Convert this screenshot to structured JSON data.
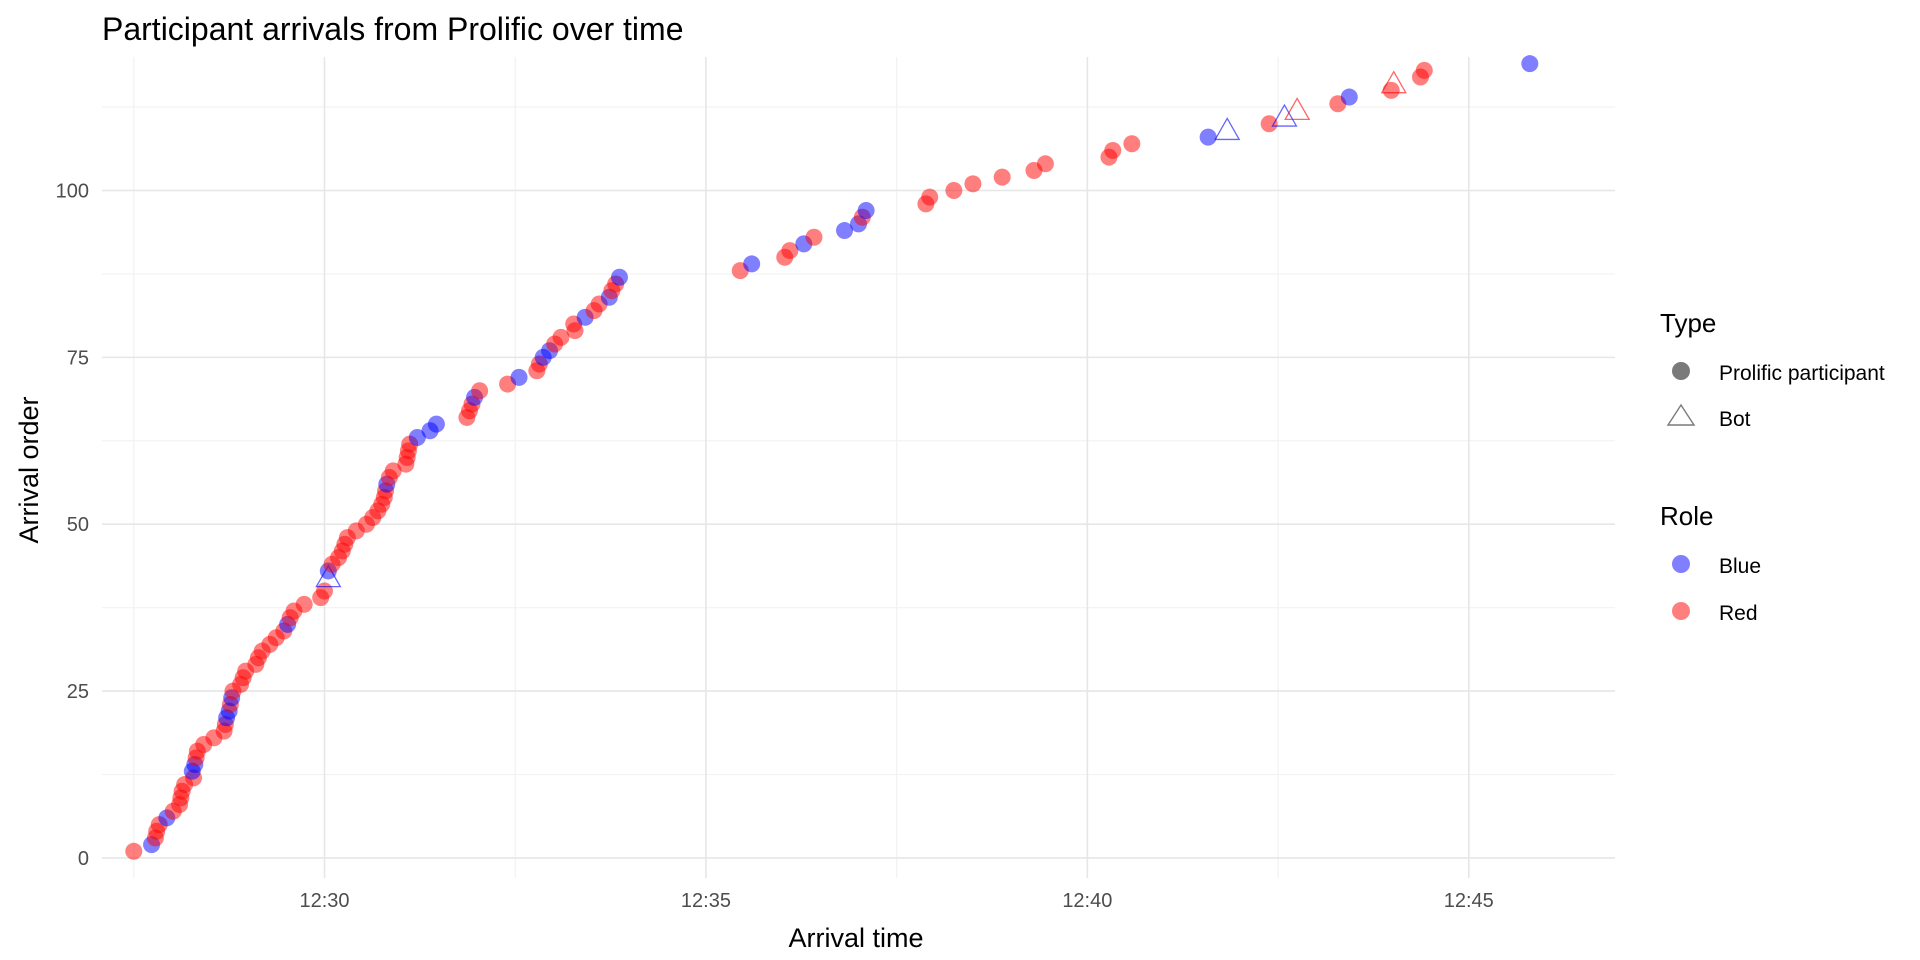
{
  "chart_data": {
    "type": "scatter",
    "title": "Participant arrivals from Prolific over time",
    "xlabel": "Arrival time",
    "ylabel": "Arrival order",
    "x_unit": "minutes",
    "xlim": [
      "12:27:05",
      "12:46:55"
    ],
    "ylim": [
      -3,
      120
    ],
    "x_ticks": [
      {
        "value": "12:30:00",
        "label": "12:30"
      },
      {
        "value": "12:35:00",
        "label": "12:35"
      },
      {
        "value": "12:40:00",
        "label": "12:40"
      },
      {
        "value": "12:45:00",
        "label": "12:45"
      }
    ],
    "y_ticks": [
      {
        "value": 0,
        "label": "0"
      },
      {
        "value": 25,
        "label": "25"
      },
      {
        "value": 50,
        "label": "50"
      },
      {
        "value": 75,
        "label": "75"
      },
      {
        "value": 100,
        "label": "100"
      }
    ],
    "grid": true,
    "legend_position": "right",
    "legends": {
      "type": {
        "title": "Type",
        "items": [
          {
            "label": "Prolific participant",
            "shape": "circle"
          },
          {
            "label": "Bot",
            "shape": "triangle"
          }
        ]
      },
      "role": {
        "title": "Role",
        "items": [
          {
            "label": "Blue",
            "color": "#0000ff"
          },
          {
            "label": "Red",
            "color": "#ff0000"
          }
        ]
      }
    },
    "colors": {
      "Blue": "#0000ff",
      "Red": "#ff0000"
    },
    "points": [
      {
        "x": "12:27:30",
        "y": 1,
        "role": "Red",
        "type": "Prolific participant"
      },
      {
        "x": "12:27:44",
        "y": 2,
        "role": "Blue",
        "type": "Prolific participant"
      },
      {
        "x": "12:27:47",
        "y": 3,
        "role": "Red",
        "type": "Prolific participant"
      },
      {
        "x": "12:27:48",
        "y": 4,
        "role": "Red",
        "type": "Prolific participant"
      },
      {
        "x": "12:27:50",
        "y": 5,
        "role": "Red",
        "type": "Prolific participant"
      },
      {
        "x": "12:27:56",
        "y": 6,
        "role": "Blue",
        "type": "Prolific participant"
      },
      {
        "x": "12:28:01",
        "y": 7,
        "role": "Red",
        "type": "Prolific participant"
      },
      {
        "x": "12:28:06",
        "y": 8,
        "role": "Red",
        "type": "Prolific participant"
      },
      {
        "x": "12:28:07",
        "y": 9,
        "role": "Red",
        "type": "Prolific participant"
      },
      {
        "x": "12:28:08",
        "y": 10,
        "role": "Red",
        "type": "Prolific participant"
      },
      {
        "x": "12:28:10",
        "y": 11,
        "role": "Red",
        "type": "Prolific participant"
      },
      {
        "x": "12:28:17",
        "y": 12,
        "role": "Red",
        "type": "Prolific participant"
      },
      {
        "x": "12:28:16",
        "y": 13,
        "role": "Blue",
        "type": "Prolific participant"
      },
      {
        "x": "12:28:18",
        "y": 14,
        "role": "Blue",
        "type": "Prolific participant"
      },
      {
        "x": "12:28:19",
        "y": 15,
        "role": "Red",
        "type": "Prolific participant"
      },
      {
        "x": "12:28:20",
        "y": 16,
        "role": "Red",
        "type": "Prolific participant"
      },
      {
        "x": "12:28:25",
        "y": 17,
        "role": "Red",
        "type": "Prolific participant"
      },
      {
        "x": "12:28:33",
        "y": 18,
        "role": "Red",
        "type": "Prolific participant"
      },
      {
        "x": "12:28:41",
        "y": 19,
        "role": "Red",
        "type": "Prolific participant"
      },
      {
        "x": "12:28:42",
        "y": 20,
        "role": "Red",
        "type": "Prolific participant"
      },
      {
        "x": "12:28:43",
        "y": 21,
        "role": "Blue",
        "type": "Prolific participant"
      },
      {
        "x": "12:28:45",
        "y": 22,
        "role": "Blue",
        "type": "Prolific participant"
      },
      {
        "x": "12:28:46",
        "y": 23,
        "role": "Red",
        "type": "Prolific participant"
      },
      {
        "x": "12:28:47",
        "y": 24,
        "role": "Blue",
        "type": "Prolific participant"
      },
      {
        "x": "12:28:48",
        "y": 25,
        "role": "Red",
        "type": "Prolific participant"
      },
      {
        "x": "12:28:54",
        "y": 26,
        "role": "Red",
        "type": "Prolific participant"
      },
      {
        "x": "12:28:56",
        "y": 27,
        "role": "Red",
        "type": "Prolific participant"
      },
      {
        "x": "12:28:58",
        "y": 28,
        "role": "Red",
        "type": "Prolific participant"
      },
      {
        "x": "12:29:06",
        "y": 29,
        "role": "Red",
        "type": "Prolific participant"
      },
      {
        "x": "12:29:08",
        "y": 30,
        "role": "Red",
        "type": "Prolific participant"
      },
      {
        "x": "12:29:11",
        "y": 31,
        "role": "Red",
        "type": "Prolific participant"
      },
      {
        "x": "12:29:17",
        "y": 32,
        "role": "Red",
        "type": "Prolific participant"
      },
      {
        "x": "12:29:22",
        "y": 33,
        "role": "Red",
        "type": "Prolific participant"
      },
      {
        "x": "12:29:28",
        "y": 34,
        "role": "Red",
        "type": "Prolific participant"
      },
      {
        "x": "12:29:31",
        "y": 35,
        "role": "Blue",
        "type": "Prolific participant"
      },
      {
        "x": "12:29:33",
        "y": 36,
        "role": "Red",
        "type": "Prolific participant"
      },
      {
        "x": "12:29:36",
        "y": 37,
        "role": "Red",
        "type": "Prolific participant"
      },
      {
        "x": "12:29:44",
        "y": 38,
        "role": "Red",
        "type": "Prolific participant"
      },
      {
        "x": "12:29:57",
        "y": 39,
        "role": "Red",
        "type": "Prolific participant"
      },
      {
        "x": "12:30:00",
        "y": 40,
        "role": "Red",
        "type": "Prolific participant"
      },
      {
        "x": "12:30:03",
        "y": 42,
        "role": "Blue",
        "type": "Bot"
      },
      {
        "x": "12:30:03",
        "y": 43,
        "role": "Blue",
        "type": "Prolific participant"
      },
      {
        "x": "12:30:06",
        "y": 44,
        "role": "Red",
        "type": "Prolific participant"
      },
      {
        "x": "12:30:11",
        "y": 45,
        "role": "Red",
        "type": "Prolific participant"
      },
      {
        "x": "12:30:14",
        "y": 46,
        "role": "Red",
        "type": "Prolific participant"
      },
      {
        "x": "12:30:16",
        "y": 47,
        "role": "Red",
        "type": "Prolific participant"
      },
      {
        "x": "12:30:18",
        "y": 48,
        "role": "Red",
        "type": "Prolific participant"
      },
      {
        "x": "12:30:25",
        "y": 49,
        "role": "Red",
        "type": "Prolific participant"
      },
      {
        "x": "12:30:33",
        "y": 50,
        "role": "Red",
        "type": "Prolific participant"
      },
      {
        "x": "12:30:38",
        "y": 51,
        "role": "Red",
        "type": "Prolific participant"
      },
      {
        "x": "12:30:42",
        "y": 52,
        "role": "Red",
        "type": "Prolific participant"
      },
      {
        "x": "12:30:45",
        "y": 53,
        "role": "Red",
        "type": "Prolific participant"
      },
      {
        "x": "12:30:47",
        "y": 54,
        "role": "Red",
        "type": "Prolific participant"
      },
      {
        "x": "12:30:48",
        "y": 55,
        "role": "Red",
        "type": "Prolific participant"
      },
      {
        "x": "12:30:49",
        "y": 56,
        "role": "Blue",
        "type": "Prolific participant"
      },
      {
        "x": "12:30:51",
        "y": 57,
        "role": "Red",
        "type": "Prolific participant"
      },
      {
        "x": "12:30:54",
        "y": 58,
        "role": "Red",
        "type": "Prolific participant"
      },
      {
        "x": "12:31:04",
        "y": 59,
        "role": "Red",
        "type": "Prolific participant"
      },
      {
        "x": "12:31:05",
        "y": 60,
        "role": "Red",
        "type": "Prolific participant"
      },
      {
        "x": "12:31:06",
        "y": 61,
        "role": "Red",
        "type": "Prolific participant"
      },
      {
        "x": "12:31:07",
        "y": 62,
        "role": "Red",
        "type": "Prolific participant"
      },
      {
        "x": "12:31:13",
        "y": 63,
        "role": "Blue",
        "type": "Prolific participant"
      },
      {
        "x": "12:31:23",
        "y": 64,
        "role": "Blue",
        "type": "Prolific participant"
      },
      {
        "x": "12:31:28",
        "y": 65,
        "role": "Blue",
        "type": "Prolific participant"
      },
      {
        "x": "12:31:52",
        "y": 66,
        "role": "Red",
        "type": "Prolific participant"
      },
      {
        "x": "12:31:54",
        "y": 67,
        "role": "Red",
        "type": "Prolific participant"
      },
      {
        "x": "12:31:56",
        "y": 68,
        "role": "Red",
        "type": "Prolific participant"
      },
      {
        "x": "12:31:58",
        "y": 69,
        "role": "Blue",
        "type": "Prolific participant"
      },
      {
        "x": "12:32:02",
        "y": 70,
        "role": "Red",
        "type": "Prolific participant"
      },
      {
        "x": "12:32:24",
        "y": 71,
        "role": "Red",
        "type": "Prolific participant"
      },
      {
        "x": "12:32:33",
        "y": 72,
        "role": "Blue",
        "type": "Prolific participant"
      },
      {
        "x": "12:32:47",
        "y": 73,
        "role": "Red",
        "type": "Prolific participant"
      },
      {
        "x": "12:32:49",
        "y": 74,
        "role": "Red",
        "type": "Prolific participant"
      },
      {
        "x": "12:32:52",
        "y": 75,
        "role": "Blue",
        "type": "Prolific participant"
      },
      {
        "x": "12:32:57",
        "y": 76,
        "role": "Blue",
        "type": "Prolific participant"
      },
      {
        "x": "12:33:01",
        "y": 77,
        "role": "Red",
        "type": "Prolific participant"
      },
      {
        "x": "12:33:06",
        "y": 78,
        "role": "Red",
        "type": "Prolific participant"
      },
      {
        "x": "12:33:17",
        "y": 79,
        "role": "Red",
        "type": "Prolific participant"
      },
      {
        "x": "12:33:16",
        "y": 80,
        "role": "Red",
        "type": "Prolific participant"
      },
      {
        "x": "12:33:25",
        "y": 81,
        "role": "Blue",
        "type": "Prolific participant"
      },
      {
        "x": "12:33:32",
        "y": 82,
        "role": "Red",
        "type": "Prolific participant"
      },
      {
        "x": "12:33:36",
        "y": 83,
        "role": "Red",
        "type": "Prolific participant"
      },
      {
        "x": "12:33:44",
        "y": 84,
        "role": "Blue",
        "type": "Prolific participant"
      },
      {
        "x": "12:33:46",
        "y": 85,
        "role": "Red",
        "type": "Prolific participant"
      },
      {
        "x": "12:33:49",
        "y": 86,
        "role": "Red",
        "type": "Prolific participant"
      },
      {
        "x": "12:33:52",
        "y": 87,
        "role": "Blue",
        "type": "Prolific participant"
      },
      {
        "x": "12:35:27",
        "y": 88,
        "role": "Red",
        "type": "Prolific participant"
      },
      {
        "x": "12:35:36",
        "y": 89,
        "role": "Blue",
        "type": "Prolific participant"
      },
      {
        "x": "12:36:02",
        "y": 90,
        "role": "Red",
        "type": "Prolific participant"
      },
      {
        "x": "12:36:06",
        "y": 91,
        "role": "Red",
        "type": "Prolific participant"
      },
      {
        "x": "12:36:17",
        "y": 92,
        "role": "Blue",
        "type": "Prolific participant"
      },
      {
        "x": "12:36:25",
        "y": 93,
        "role": "Red",
        "type": "Prolific participant"
      },
      {
        "x": "12:36:49",
        "y": 94,
        "role": "Blue",
        "type": "Prolific participant"
      },
      {
        "x": "12:37:00",
        "y": 95,
        "role": "Blue",
        "type": "Prolific participant"
      },
      {
        "x": "12:37:03",
        "y": 96,
        "role": "Red",
        "type": "Prolific participant"
      },
      {
        "x": "12:37:06",
        "y": 97,
        "role": "Blue",
        "type": "Prolific participant"
      },
      {
        "x": "12:37:53",
        "y": 98,
        "role": "Red",
        "type": "Prolific participant"
      },
      {
        "x": "12:37:56",
        "y": 99,
        "role": "Red",
        "type": "Prolific participant"
      },
      {
        "x": "12:38:15",
        "y": 100,
        "role": "Red",
        "type": "Prolific participant"
      },
      {
        "x": "12:38:30",
        "y": 101,
        "role": "Red",
        "type": "Prolific participant"
      },
      {
        "x": "12:38:53",
        "y": 102,
        "role": "Red",
        "type": "Prolific participant"
      },
      {
        "x": "12:39:18",
        "y": 103,
        "role": "Red",
        "type": "Prolific participant"
      },
      {
        "x": "12:39:27",
        "y": 104,
        "role": "Red",
        "type": "Prolific participant"
      },
      {
        "x": "12:40:17",
        "y": 105,
        "role": "Red",
        "type": "Prolific participant"
      },
      {
        "x": "12:40:20",
        "y": 106,
        "role": "Red",
        "type": "Prolific participant"
      },
      {
        "x": "12:40:35",
        "y": 107,
        "role": "Red",
        "type": "Prolific participant"
      },
      {
        "x": "12:41:35",
        "y": 108,
        "role": "Blue",
        "type": "Prolific participant"
      },
      {
        "x": "12:41:50",
        "y": 109,
        "role": "Blue",
        "type": "Bot"
      },
      {
        "x": "12:42:23",
        "y": 110,
        "role": "Red",
        "type": "Prolific participant"
      },
      {
        "x": "12:42:35",
        "y": 111,
        "role": "Blue",
        "type": "Bot"
      },
      {
        "x": "12:42:45",
        "y": 112,
        "role": "Red",
        "type": "Bot"
      },
      {
        "x": "12:43:17",
        "y": 113,
        "role": "Red",
        "type": "Prolific participant"
      },
      {
        "x": "12:43:26",
        "y": 114,
        "role": "Blue",
        "type": "Prolific participant"
      },
      {
        "x": "12:43:59",
        "y": 115,
        "role": "Red",
        "type": "Prolific participant"
      },
      {
        "x": "12:44:01",
        "y": 116,
        "role": "Red",
        "type": "Bot"
      },
      {
        "x": "12:44:22",
        "y": 117,
        "role": "Red",
        "type": "Prolific participant"
      },
      {
        "x": "12:44:25",
        "y": 118,
        "role": "Red",
        "type": "Prolific participant"
      },
      {
        "x": "12:45:48",
        "y": 119,
        "role": "Blue",
        "type": "Prolific participant"
      }
    ]
  }
}
